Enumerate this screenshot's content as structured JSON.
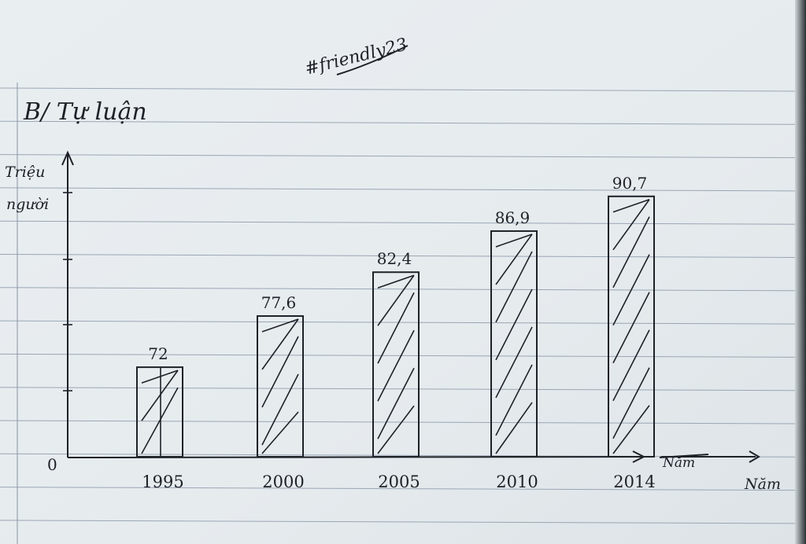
{
  "tag_text": "#friendly23",
  "section_title": "B/ Tự luận",
  "chart_data": {
    "type": "bar",
    "ylabel": [
      "Triệu",
      "người"
    ],
    "xlabel": "Năm",
    "xlabel_struck": "Năm",
    "origin_label": "0",
    "categories": [
      "1995",
      "2000",
      "2005",
      "2010",
      "2014"
    ],
    "value_labels": [
      "72",
      "77,6",
      "82,4",
      "86,9",
      "90,7"
    ],
    "values": [
      72,
      77.6,
      82.4,
      86.9,
      90.7
    ],
    "ylim": [
      0,
      100
    ],
    "bar_pattern": "hand-drawn diagonal hatching",
    "grid": false
  },
  "colors": {
    "paper": "#e8edf0",
    "ruling": "#9aa6b4",
    "margin_rule": "#8a94a2",
    "ink": "#1e2128"
  }
}
